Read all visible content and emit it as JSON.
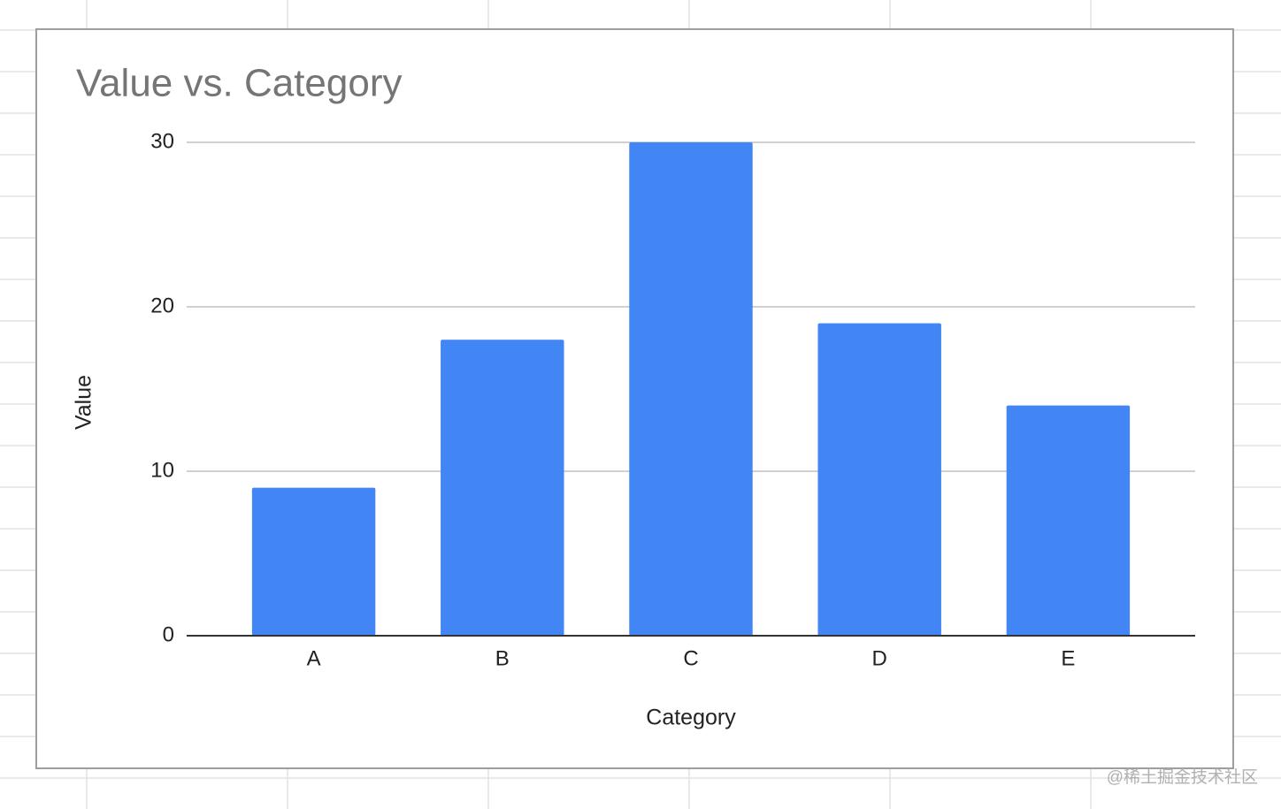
{
  "chart_data": {
    "type": "bar",
    "title": "Value vs. Category",
    "x_label": "Category",
    "y_label": "Value",
    "categories": [
      "A",
      "B",
      "C",
      "D",
      "E"
    ],
    "values": [
      9,
      18,
      30,
      19,
      14
    ],
    "color": "#4285f4",
    "ylim": [
      0,
      30
    ],
    "yticks": [
      0,
      10,
      20,
      30
    ],
    "grid": true
  },
  "watermark": "@稀土掘金技术社区"
}
